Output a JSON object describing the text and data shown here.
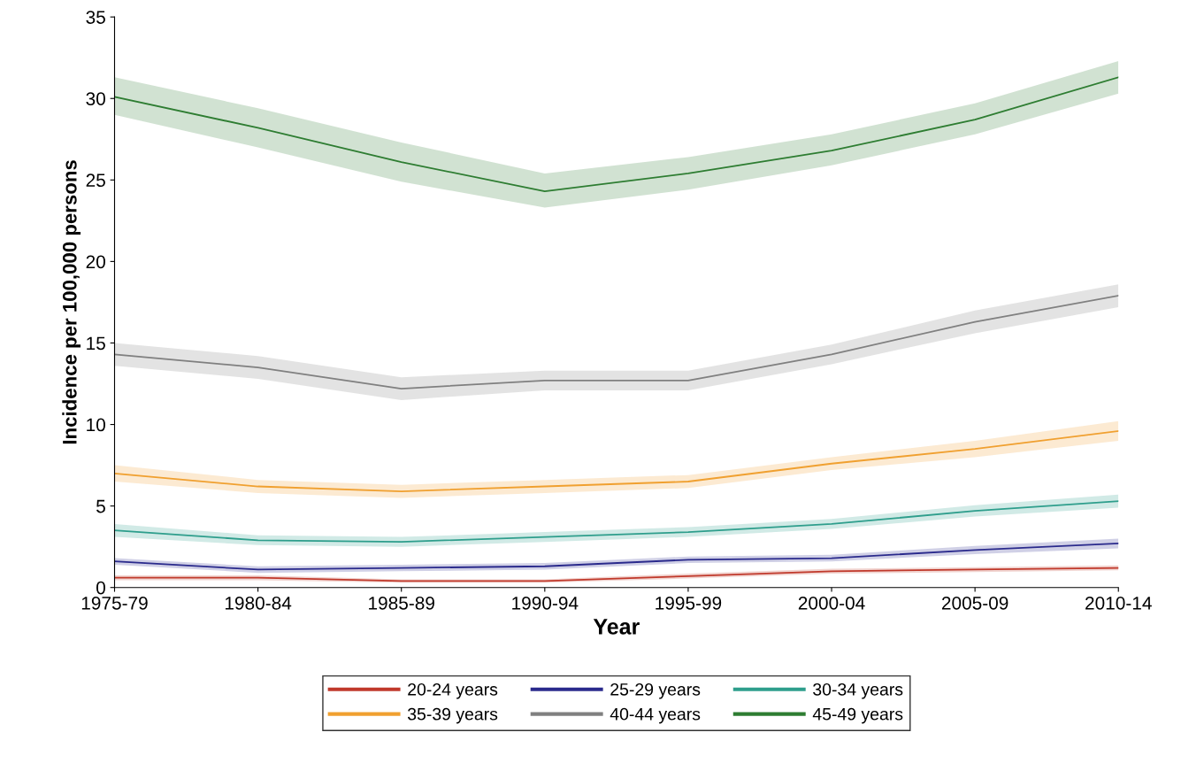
{
  "chart_data": {
    "type": "line",
    "xlabel": "Year",
    "ylabel": "Incidence per 100,000 persons",
    "categories": [
      "1975-79",
      "1980-84",
      "1985-89",
      "1990-94",
      "1995-99",
      "2000-04",
      "2005-09",
      "2010-14"
    ],
    "ylim": [
      0,
      35
    ],
    "yticks": [
      0,
      5,
      10,
      15,
      20,
      25,
      30,
      35
    ],
    "grid": false,
    "legend": "bottom",
    "marker": "none",
    "line_style": "solid",
    "series": [
      {
        "name": "20-24 years",
        "color": "#c0392b",
        "values": [
          0.6,
          0.6,
          0.4,
          0.4,
          0.7,
          1.0,
          1.1,
          1.2
        ],
        "lower": [
          0.45,
          0.45,
          0.3,
          0.3,
          0.55,
          0.85,
          0.95,
          1.05
        ],
        "upper": [
          0.75,
          0.75,
          0.5,
          0.5,
          0.85,
          1.15,
          1.25,
          1.35
        ]
      },
      {
        "name": "25-29 years",
        "color": "#2a2a8c",
        "values": [
          1.6,
          1.1,
          1.2,
          1.3,
          1.7,
          1.8,
          2.3,
          2.7
        ],
        "lower": [
          1.4,
          0.9,
          1.0,
          1.1,
          1.5,
          1.6,
          2.05,
          2.4
        ],
        "upper": [
          1.8,
          1.3,
          1.4,
          1.5,
          1.9,
          2.0,
          2.55,
          3.0
        ]
      },
      {
        "name": "30-34 years",
        "color": "#2e9e8c",
        "values": [
          3.5,
          2.9,
          2.8,
          3.1,
          3.4,
          3.9,
          4.7,
          5.3
        ],
        "lower": [
          3.1,
          2.6,
          2.5,
          2.8,
          3.1,
          3.6,
          4.35,
          4.9
        ],
        "upper": [
          3.9,
          3.2,
          3.1,
          3.4,
          3.7,
          4.2,
          5.05,
          5.7
        ]
      },
      {
        "name": "35-39 years",
        "color": "#f0a030",
        "values": [
          7.0,
          6.2,
          5.9,
          6.2,
          6.5,
          7.6,
          8.5,
          9.6
        ],
        "lower": [
          6.5,
          5.8,
          5.5,
          5.8,
          6.1,
          7.2,
          8.0,
          9.0
        ],
        "upper": [
          7.5,
          6.6,
          6.3,
          6.6,
          6.9,
          8.0,
          9.0,
          10.2
        ]
      },
      {
        "name": "40-44 years",
        "color": "#808080",
        "values": [
          14.3,
          13.5,
          12.2,
          12.7,
          12.7,
          14.3,
          16.3,
          17.9
        ],
        "lower": [
          13.6,
          12.8,
          11.5,
          12.1,
          12.1,
          13.7,
          15.6,
          17.2
        ],
        "upper": [
          15.0,
          14.2,
          12.9,
          13.3,
          13.3,
          14.9,
          17.0,
          18.6
        ]
      },
      {
        "name": "45-49 years",
        "color": "#2e7d32",
        "values": [
          30.1,
          28.2,
          26.1,
          24.3,
          25.4,
          26.8,
          28.7,
          31.3
        ],
        "lower": [
          29.0,
          27.0,
          24.9,
          23.3,
          24.4,
          25.9,
          27.8,
          30.3
        ],
        "upper": [
          31.3,
          29.4,
          27.3,
          25.4,
          26.4,
          27.8,
          29.7,
          32.3
        ]
      }
    ]
  }
}
